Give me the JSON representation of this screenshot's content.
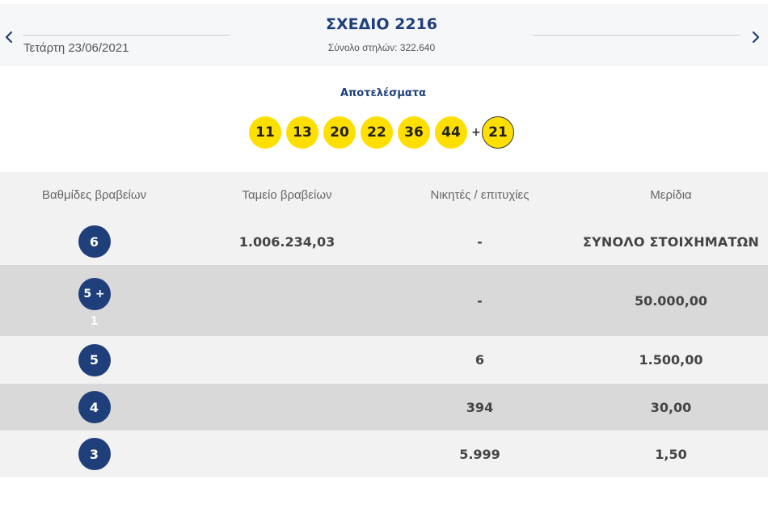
{
  "header": {
    "date": "Τετάρτη 23/06/2021",
    "draw_title": "ΣΧΕΔΙΟ 2216",
    "total_columns": "Σύνολο στηλών: 322.640"
  },
  "results": {
    "label": "Αποτελέσματα",
    "numbers": [
      "11",
      "13",
      "20",
      "22",
      "36",
      "44"
    ],
    "plus": "+",
    "bonus": "21",
    "ball_color": "#ffdf00"
  },
  "table": {
    "headers": [
      "Βαθμίδες βραβείων",
      "Ταμείο βραβείων",
      "Νικητές / επιτυχίες",
      "Μερίδια"
    ],
    "rows": [
      {
        "tier": "6",
        "tier_sub": "",
        "fund": "1.006.234,03",
        "winners": "-",
        "share": "ΣΥΝΟΛΟ ΣΤΟΙΧΗΜΑΤΩΝ"
      },
      {
        "tier": "5 +",
        "tier_sub": "1",
        "fund": "",
        "winners": "-",
        "share": "50.000,00"
      },
      {
        "tier": "5",
        "tier_sub": "",
        "fund": "",
        "winners": "6",
        "share": "1.500,00"
      },
      {
        "tier": "4",
        "tier_sub": "",
        "fund": "",
        "winners": "394",
        "share": "30,00"
      },
      {
        "tier": "3",
        "tier_sub": "",
        "fund": "",
        "winners": "5.999",
        "share": "1,50"
      }
    ]
  },
  "colors": {
    "brand_blue": "#1f3f7a",
    "row_light": "#f2f2f2",
    "row_dark": "#d9d9d9"
  },
  "icons": {
    "prev": "chevron-left-icon",
    "next": "chevron-right-icon"
  }
}
